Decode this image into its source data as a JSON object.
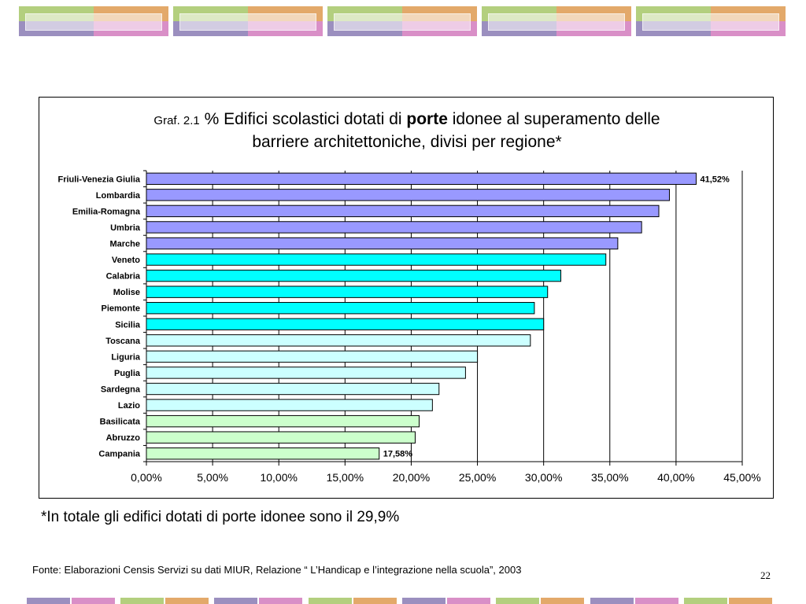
{
  "slide": {
    "title_prefix": "Graf. 2.1",
    "title_part1": "% Edifici scolastici dotati di",
    "title_bold": "porte",
    "title_part2": "idonee al superamento delle",
    "title_line2": "barriere architettoniche, divisi per regione*",
    "note": "*In totale gli edifici dotati di porte idonee sono il 29,9%",
    "source": "Fonte: Elaborazioni Censis Servizi su dati MIUR, Relazione “ L’Handicap e l’integrazione nella scuola”, 2003",
    "page_number": "22"
  },
  "chart_data": {
    "type": "bar",
    "orientation": "horizontal",
    "title": "Graf. 2.1 % Edifici scolastici dotati di porte idonee al superamento delle barriere architettoniche, divisi per regione*",
    "xlabel": "",
    "ylabel": "",
    "xlim": [
      0,
      45
    ],
    "grid": true,
    "x_ticks": [
      "0,00%",
      "5,00%",
      "10,00%",
      "15,00%",
      "20,00%",
      "25,00%",
      "30,00%",
      "35,00%",
      "40,00%",
      "45,00%"
    ],
    "categories": [
      "Friuli-Venezia Giulia",
      "Lombardia",
      "Emilia-Romagna",
      "Umbria",
      "Marche",
      "Veneto",
      "Calabria",
      "Molise",
      "Piemonte",
      "Sicilia",
      "Toscana",
      "Liguria",
      "Puglia",
      "Sardegna",
      "Lazio",
      "Basilicata",
      "Abruzzo",
      "Campania"
    ],
    "values": [
      41.52,
      39.5,
      38.7,
      37.4,
      35.6,
      34.7,
      31.3,
      30.3,
      29.3,
      30.0,
      29.0,
      25.0,
      24.1,
      22.1,
      21.6,
      20.6,
      20.3,
      17.58
    ],
    "bar_colors": [
      "#9999ff",
      "#9999ff",
      "#9999ff",
      "#9999ff",
      "#9999ff",
      "#00ffff",
      "#00ffff",
      "#00ffff",
      "#00ffff",
      "#00ffff",
      "#ccffff",
      "#ccffff",
      "#ccffff",
      "#ccffff",
      "#ccffff",
      "#ccffcc",
      "#ccffcc",
      "#ccffcc"
    ],
    "data_labels": [
      {
        "category": "Friuli-Venezia Giulia",
        "text": "41,52%"
      },
      {
        "category": "Campania",
        "text": "17,58%"
      }
    ]
  },
  "decor": {
    "banner_colors": [
      "#b3cf7e",
      "#e3a96a",
      "#9b8fbf",
      "#d98fc7"
    ]
  }
}
